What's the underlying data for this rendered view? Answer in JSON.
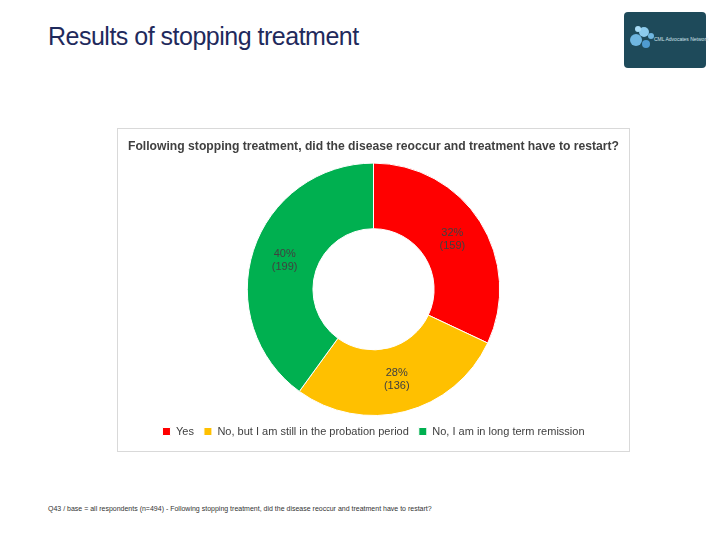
{
  "slide_title": "Results of stopping treatment",
  "logo": "CML Advocates Network",
  "footnote": "Q43 / base = all respondents (n=494) - Following stopping treatment, did the disease reoccur and treatment have to restart?",
  "chart_data": {
    "type": "doughnut",
    "title": "Following stopping treatment, did the disease reoccur and treatment have to restart?",
    "categories": [
      "Yes",
      "No, but I am still in the probation period",
      "No, I am in long term remission"
    ],
    "values": [
      32,
      28,
      40
    ],
    "value_labels": [
      "32% (159)",
      "28% (136)",
      "40% (199)"
    ],
    "colors": [
      "#ff0000",
      "#ffc000",
      "#00b050"
    ],
    "legend": "bottom",
    "data_labels": true
  }
}
